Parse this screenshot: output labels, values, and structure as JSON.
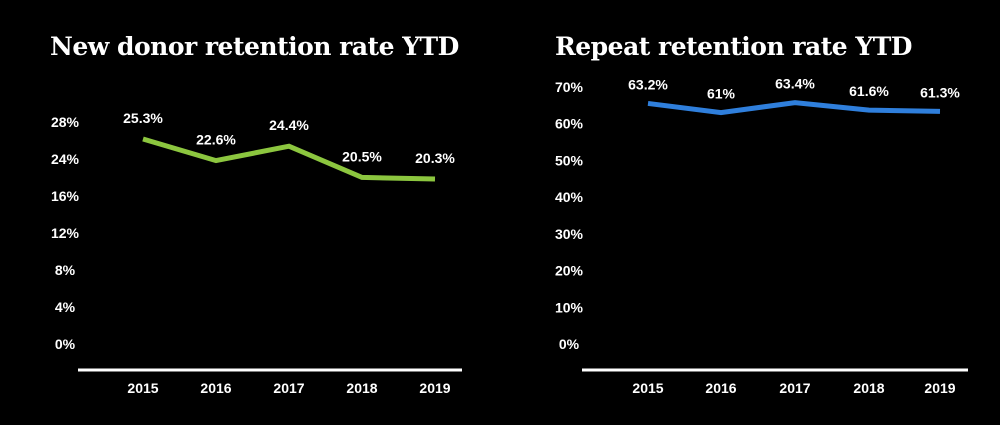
{
  "chart_data": [
    {
      "type": "line",
      "title": "New donor retention rate YTD",
      "categories": [
        "2015",
        "2016",
        "2017",
        "2018",
        "2019"
      ],
      "values": [
        25.3,
        22.6,
        24.4,
        20.5,
        20.3
      ],
      "data_labels": [
        "25.3%",
        "22.6%",
        "24.4%",
        "20.5%",
        "20.3%"
      ],
      "y_tick_labels": [
        "28%",
        "24%",
        "16%",
        "12%",
        "8%",
        "4%",
        "0%"
      ],
      "color": "#8cc63f",
      "grid": false
    },
    {
      "type": "line",
      "title": "Repeat retention rate YTD",
      "categories": [
        "2015",
        "2016",
        "2017",
        "2018",
        "2019"
      ],
      "values": [
        63.2,
        61,
        63.4,
        61.6,
        61.3
      ],
      "data_labels": [
        "63.2%",
        "61%",
        "63.4%",
        "61.6%",
        "61.3%"
      ],
      "y_tick_labels": [
        "70%",
        "60%",
        "50%",
        "40%",
        "30%",
        "20%",
        "10%",
        "0%"
      ],
      "ylim": [
        0,
        70
      ],
      "color": "#2f7fdc",
      "grid": false
    }
  ]
}
